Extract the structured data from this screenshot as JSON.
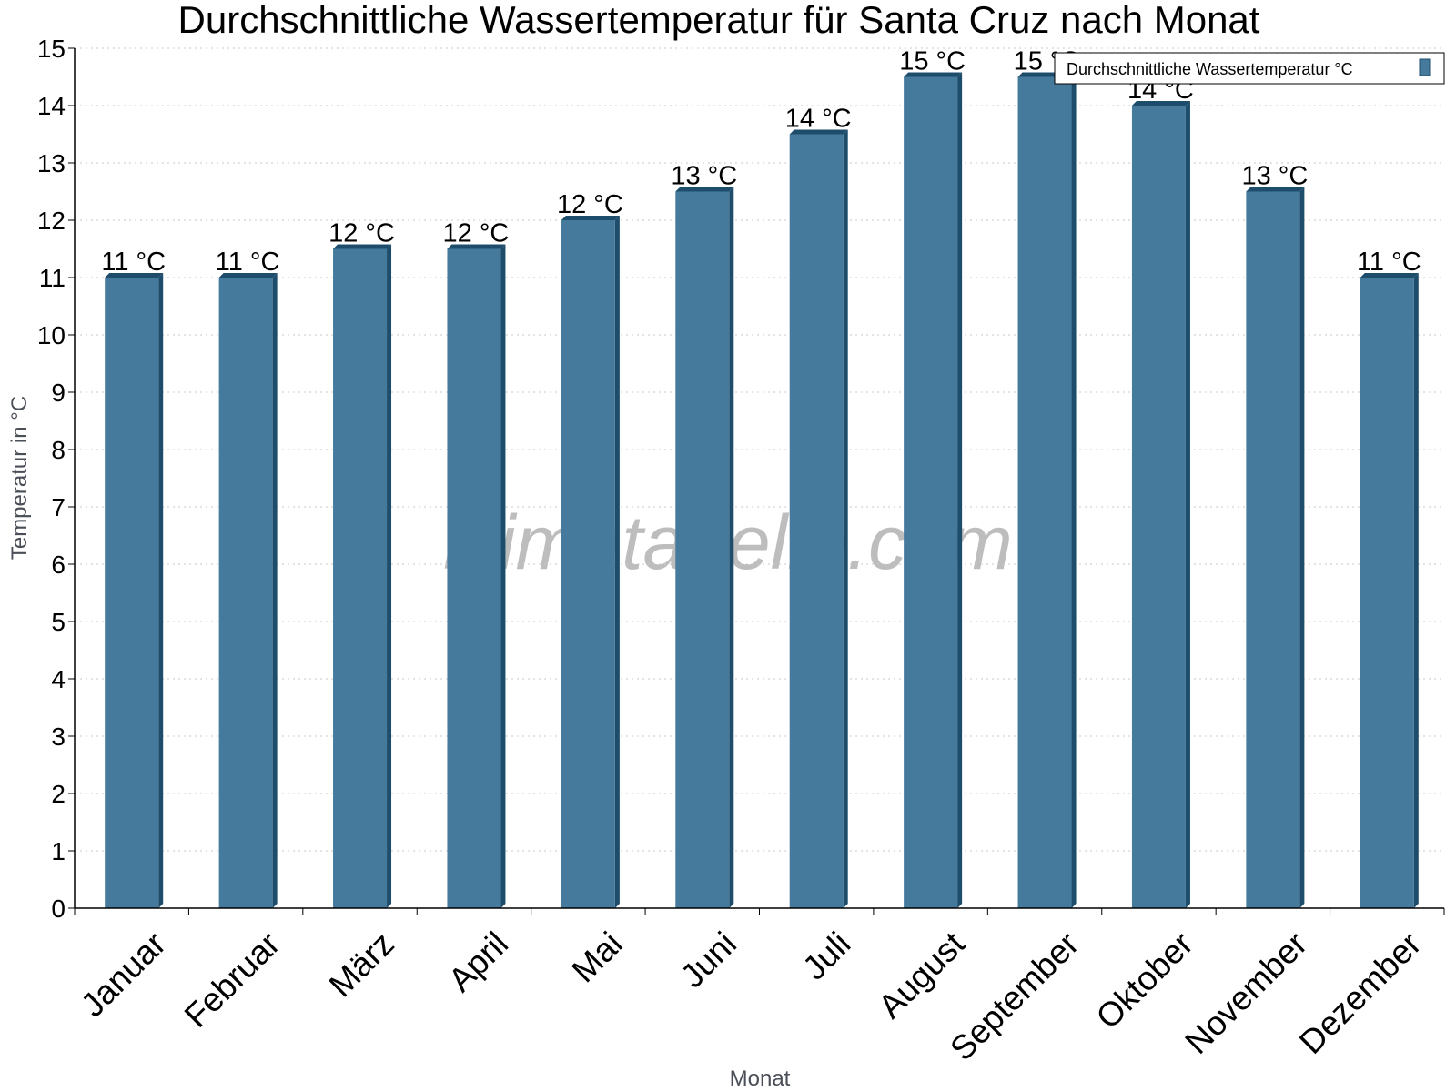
{
  "chart_data": {
    "type": "bar",
    "title": "Durchschnittliche Wassertemperatur für Santa Cruz nach Monat",
    "xlabel": "Monat",
    "ylabel": "Temperatur in °C",
    "categories": [
      "Januar",
      "Februar",
      "März",
      "April",
      "Mai",
      "Juni",
      "Juli",
      "August",
      "September",
      "Oktober",
      "November",
      "Dezember"
    ],
    "series": [
      {
        "name": "Durchschnittliche Wassertemperatur °C",
        "values": [
          11,
          11,
          11.5,
          11.5,
          12,
          12.5,
          13.5,
          14.5,
          14.5,
          14,
          12.5,
          11
        ],
        "labels": [
          "11 °C",
          "11 °C",
          "12 °C",
          "12 °C",
          "12 °C",
          "13 °C",
          "14 °C",
          "15 °C",
          "15 °C",
          "14 °C",
          "13 °C",
          "11 °C"
        ]
      }
    ],
    "ylim": [
      0,
      15
    ],
    "yticks": [
      0,
      1,
      2,
      3,
      4,
      5,
      6,
      7,
      8,
      9,
      10,
      11,
      12,
      13,
      14,
      15
    ],
    "grid": true,
    "legend_position": "top-right",
    "colors": {
      "bar": "#457a9c",
      "bar_dark": "#1e4d6b",
      "grid": "#c9c9c9"
    },
    "watermark": "klimatabelle.com"
  }
}
